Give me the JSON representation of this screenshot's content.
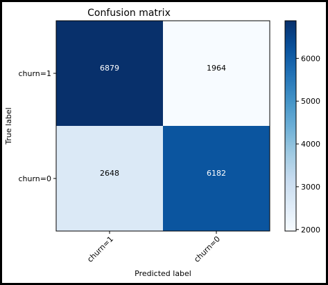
{
  "chart_data": {
    "type": "heatmap",
    "title": "Confusion matrix",
    "xlabel": "Predicted label",
    "ylabel": "True label",
    "x_categories": [
      "churn=1",
      "churn=0"
    ],
    "y_categories": [
      "churn=1",
      "churn=0"
    ],
    "values": [
      [
        6879,
        1964
      ],
      [
        2648,
        6182
      ]
    ],
    "colormap": "Blues",
    "colorbar": {
      "range": [
        1964,
        6879
      ],
      "ticks": [
        2000,
        3000,
        4000,
        5000,
        6000
      ],
      "tick_labels": [
        "2000",
        "3000",
        "4000",
        "5000",
        "6000"
      ]
    },
    "grid": false
  }
}
